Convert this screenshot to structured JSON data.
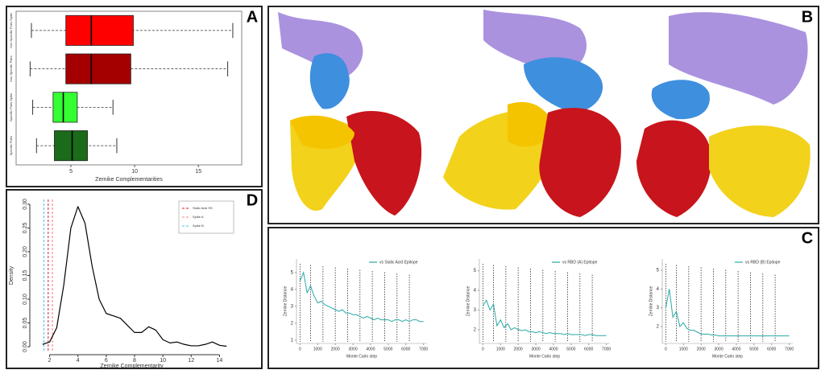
{
  "panel_labels": [
    "A",
    "B",
    "C",
    "D"
  ],
  "chart_data": [
    {
      "type": "box",
      "xlabel": "Zernike Complementarities",
      "categories": [
        "Non Specific Pairs Spike",
        "Non Specific Pairs",
        "Specific Pairs Spike",
        "Specific Pairs"
      ],
      "colors": [
        "#ff0000",
        "#a50000",
        "#33ff33",
        "#1a6b1a"
      ],
      "min": [
        1.9,
        1.8,
        2.0,
        2.3
      ],
      "q1": [
        4.6,
        4.6,
        3.6,
        3.7
      ],
      "median": [
        6.6,
        6.6,
        4.4,
        5.1
      ],
      "q3": [
        9.9,
        9.7,
        5.5,
        6.3
      ],
      "max": [
        17.7,
        17.3,
        8.3,
        8.6
      ],
      "xlim": [
        0.7,
        18.4
      ],
      "xticks": [
        5,
        10,
        15
      ]
    },
    {
      "type": "density",
      "xlabel": "Zernike Complementarity",
      "ylabel": "Density",
      "color": "#000000",
      "x": [
        1.5,
        2,
        2.5,
        3,
        3.5,
        4,
        4.5,
        5,
        5.5,
        6,
        6.5,
        7,
        7.5,
        8,
        8.5,
        9,
        9.5,
        10,
        10.5,
        11,
        11.5,
        12,
        12.5,
        13,
        13.5,
        14,
        14.5
      ],
      "values": [
        0.005,
        0.01,
        0.04,
        0.13,
        0.25,
        0.295,
        0.26,
        0.17,
        0.1,
        0.07,
        0.065,
        0.06,
        0.045,
        0.03,
        0.03,
        0.042,
        0.035,
        0.015,
        0.008,
        0.01,
        0.005,
        0.002,
        0.002,
        0.005,
        0.01,
        0.003,
        0.001
      ],
      "vlines": [
        {
          "name": "Sialic Acid SS",
          "color": "#e41a1c",
          "value": 1.9
        },
        {
          "name": "Spike A",
          "color": "#f08080",
          "value": 2.2
        },
        {
          "name": "Spike B",
          "color": "#40c0e0",
          "value": 1.6
        }
      ],
      "xlim": [
        0.6,
        15
      ],
      "ylim": [
        -0.01,
        0.31
      ],
      "xticks": [
        2,
        4,
        6,
        8,
        10,
        12,
        14
      ],
      "yticks": [
        {
          "value": 0,
          "label": "0.00"
        },
        {
          "value": 0.05,
          "label": "0.05"
        },
        {
          "value": 0.1,
          "label": "0.10"
        },
        {
          "value": 0.15,
          "label": "0.15"
        },
        {
          "value": 0.2,
          "label": "0.20"
        },
        {
          "value": 0.25,
          "label": "0.25"
        },
        {
          "value": 0.3,
          "label": "0.30"
        }
      ]
    },
    {
      "type": "line",
      "xlabel": "Monte Carlo step",
      "ylabel": "Zernike Distance",
      "x": [
        0,
        200,
        400,
        600,
        800,
        1000,
        1200,
        1400,
        1600,
        1800,
        2000,
        2200,
        2400,
        2600,
        2800,
        3000,
        3200,
        3400,
        3600,
        3800,
        4000,
        4200,
        4400,
        4600,
        4800,
        5000,
        5200,
        5400,
        5600,
        5800,
        6000,
        6200,
        6400,
        6600,
        6800,
        7000
      ],
      "series": [
        {
          "name": "vs Sialic Acid Epitope",
          "color": "#2aa8a8",
          "values": [
            4.5,
            5.0,
            3.8,
            4.2,
            3.6,
            3.2,
            3.3,
            3.1,
            3.0,
            2.9,
            2.8,
            2.7,
            2.8,
            2.6,
            2.6,
            2.5,
            2.5,
            2.4,
            2.3,
            2.4,
            2.3,
            2.2,
            2.3,
            2.2,
            2.2,
            2.2,
            2.1,
            2.2,
            2.2,
            2.1,
            2.2,
            2.1,
            2.2,
            2.2,
            2.1,
            2.1
          ]
        }
      ],
      "markers": [
        0,
        600,
        1300,
        2000,
        2700,
        3400,
        4100,
        4800,
        5500,
        6200
      ],
      "xlim": [
        -200,
        7200
      ],
      "ylim": [
        0.8,
        5.8
      ],
      "xticks": [
        0,
        1000,
        2000,
        3000,
        4000,
        5000,
        6000,
        7000
      ],
      "yticks": [
        1,
        2,
        3,
        4,
        5
      ]
    },
    {
      "type": "line",
      "xlabel": "Monte Carlo step",
      "ylabel": "Zernike Distance",
      "x": [
        0,
        200,
        400,
        600,
        800,
        1000,
        1200,
        1400,
        1600,
        1800,
        2000,
        2200,
        2400,
        2600,
        2800,
        3000,
        3200,
        3400,
        3600,
        3800,
        4000,
        4200,
        4400,
        4600,
        4800,
        5000,
        5200,
        5400,
        5600,
        5800,
        6000,
        6200,
        6400,
        6600,
        6800,
        7000
      ],
      "series": [
        {
          "name": "vs RBD (A) Epitope",
          "color": "#2aa8a8",
          "values": [
            3.2,
            3.5,
            3.0,
            3.3,
            2.2,
            2.5,
            2.1,
            2.3,
            2.0,
            2.1,
            2.0,
            1.95,
            2.0,
            1.9,
            1.9,
            1.85,
            1.9,
            1.85,
            1.8,
            1.85,
            1.8,
            1.8,
            1.8,
            1.75,
            1.8,
            1.75,
            1.75,
            1.75,
            1.75,
            1.7,
            1.75,
            1.75,
            1.7,
            1.7,
            1.7,
            1.7
          ]
        }
      ],
      "markers": [
        0,
        600,
        1300,
        2000,
        2700,
        3400,
        4100,
        4800,
        5500,
        6200
      ],
      "xlim": [
        -200,
        7200
      ],
      "ylim": [
        1.3,
        5.6
      ],
      "xticks": [
        0,
        1000,
        2000,
        3000,
        4000,
        5000,
        6000,
        7000
      ],
      "yticks": [
        2,
        3,
        4,
        5
      ]
    },
    {
      "type": "line",
      "xlabel": "Monte Carlo step",
      "ylabel": "Zernike Distance",
      "x": [
        0,
        200,
        400,
        600,
        800,
        1000,
        1200,
        1400,
        1600,
        1800,
        2000,
        2200,
        2400,
        2600,
        2800,
        3000,
        3200,
        3400,
        3600,
        3800,
        4000,
        4200,
        4400,
        4600,
        4800,
        5000,
        5200,
        5400,
        5600,
        5800,
        6000,
        6200,
        6400,
        6600,
        6800,
        7000
      ],
      "series": [
        {
          "name": "vs RBD (B) Epitope",
          "color": "#2aa8a8",
          "values": [
            3.0,
            4.0,
            2.5,
            2.8,
            2.0,
            2.2,
            1.9,
            1.8,
            1.8,
            1.7,
            1.6,
            1.6,
            1.6,
            1.55,
            1.55,
            1.5,
            1.5,
            1.5,
            1.5,
            1.5,
            1.5,
            1.5,
            1.5,
            1.5,
            1.5,
            1.5,
            1.5,
            1.5,
            1.5,
            1.5,
            1.5,
            1.5,
            1.5,
            1.5,
            1.5,
            1.5
          ]
        }
      ],
      "markers": [
        0,
        600,
        1300,
        2000,
        2700,
        3400,
        4100,
        4800,
        5500,
        6200
      ],
      "xlim": [
        -200,
        7200
      ],
      "ylim": [
        1.1,
        5.6
      ],
      "xticks": [
        0,
        1000,
        2000,
        3000,
        4000,
        5000,
        6000,
        7000
      ],
      "yticks": [
        2,
        3,
        4,
        5
      ]
    }
  ]
}
